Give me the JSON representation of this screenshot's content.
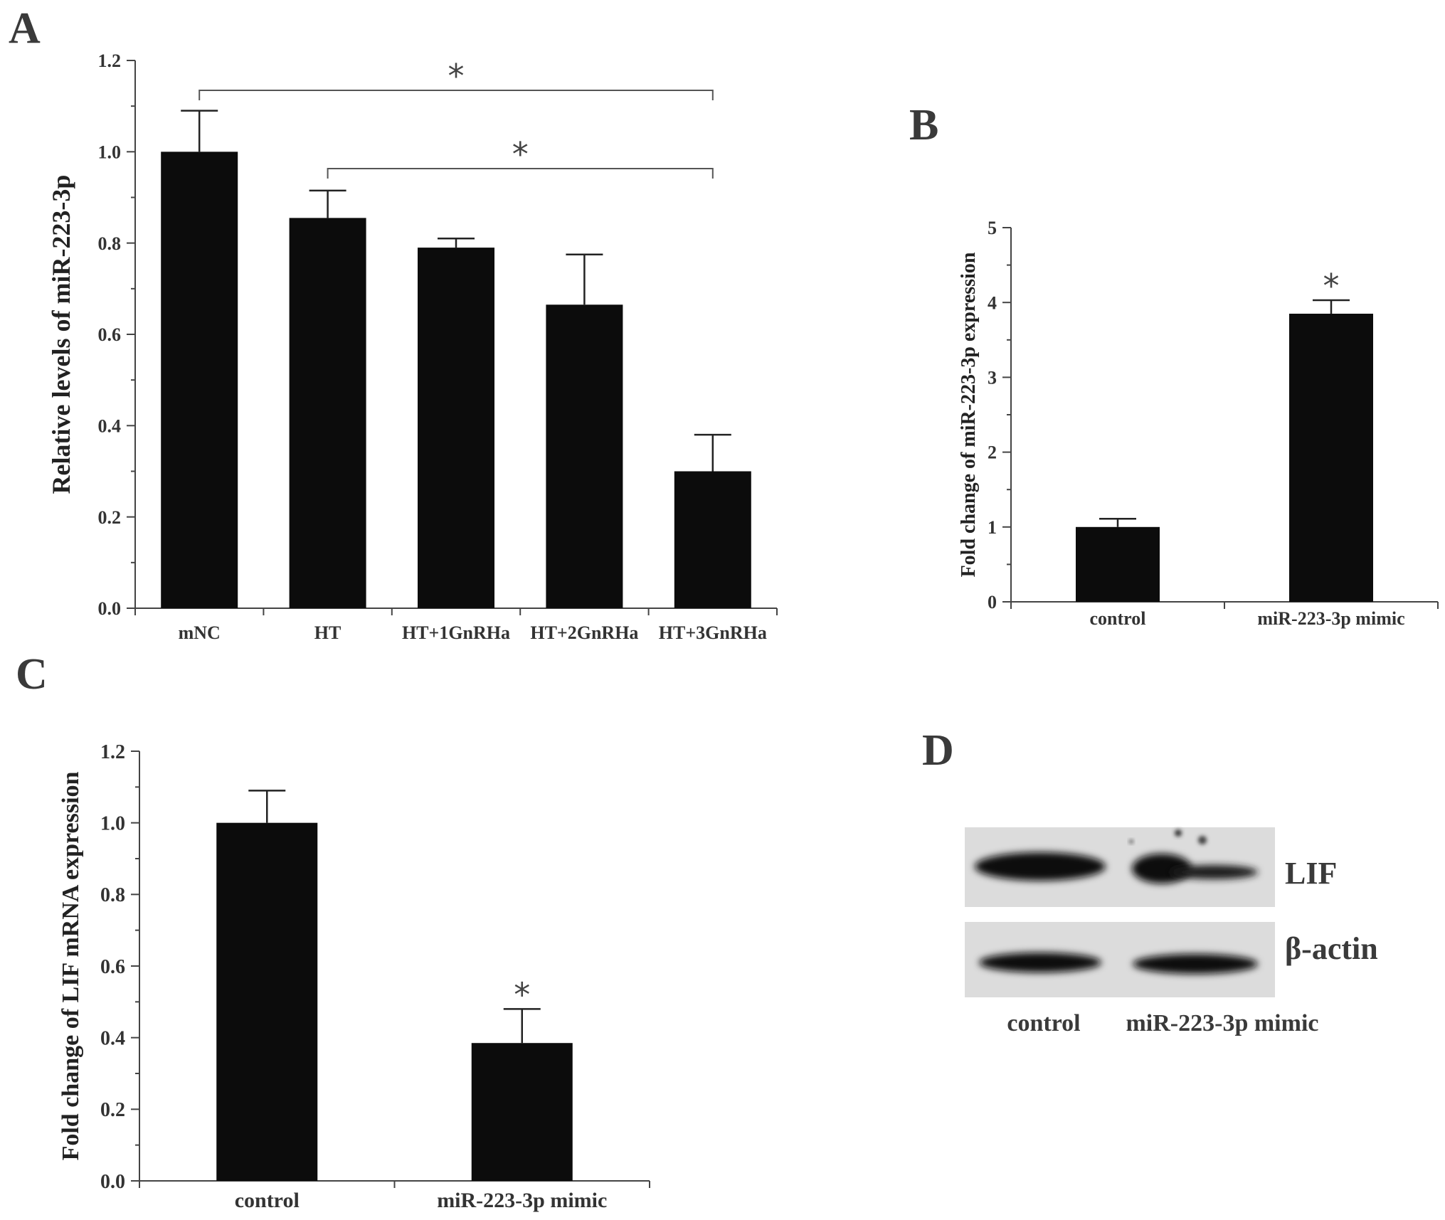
{
  "panels": {
    "a": "A",
    "b": "B",
    "c": "C",
    "d": "D"
  },
  "significance_symbol": "*",
  "chart_data": [
    {
      "id": "A",
      "type": "bar",
      "categories": [
        "mNC",
        "HT",
        "HT+1GnRHa",
        "HT+2GnRHa",
        "HT+3GnRHa"
      ],
      "values": [
        1.0,
        0.855,
        0.79,
        0.665,
        0.3
      ],
      "errors": [
        0.09,
        0.06,
        0.02,
        0.11,
        0.08
      ],
      "ylabel": "Relative levels of miR-223-3p",
      "ylim": [
        0,
        1.2
      ],
      "yticks": [
        "0.0",
        "0.2",
        "0.4",
        "0.6",
        "0.8",
        "1.0",
        "1.2"
      ],
      "significance_brackets": [
        {
          "from": "mNC",
          "to": "HT+3GnRHa",
          "label": "*"
        },
        {
          "from": "HT",
          "to": "HT+3GnRHa",
          "label": "*"
        }
      ]
    },
    {
      "id": "B",
      "type": "bar",
      "categories": [
        "control",
        "miR-223-3p mimic"
      ],
      "values": [
        1.0,
        3.85
      ],
      "errors": [
        0.11,
        0.18
      ],
      "ylabel": "Fold change of miR-223-3p expression",
      "ylim": [
        0,
        5
      ],
      "yticks": [
        "0",
        "1",
        "2",
        "3",
        "4",
        "5"
      ],
      "significance": [
        "",
        "*"
      ]
    },
    {
      "id": "C",
      "type": "bar",
      "categories": [
        "control",
        "miR-223-3p mimic"
      ],
      "values": [
        1.0,
        0.385
      ],
      "errors": [
        0.09,
        0.095
      ],
      "ylabel": "Fold change of LIF mRNA expression",
      "ylim": [
        0,
        1.2
      ],
      "yticks": [
        "0.0",
        "0.2",
        "0.4",
        "0.6",
        "0.8",
        "1.0",
        "1.2"
      ],
      "significance": [
        "",
        "*"
      ]
    }
  ],
  "blot": {
    "rows": [
      "LIF",
      "β-actin"
    ],
    "lanes": [
      "control",
      "miR-223-3p mimic"
    ]
  }
}
